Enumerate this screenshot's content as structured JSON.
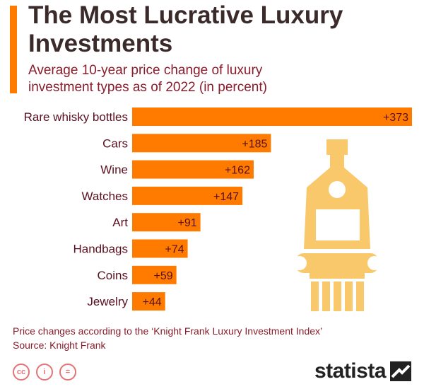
{
  "title": "The Most Lucrative Luxury Investments",
  "subtitle": "Average 10-year price change of luxury investment types as of 2022 (in percent)",
  "note": "Price changes according to the ‘Knight Frank Luxury Investment Index’",
  "source": "Source: Knight Frank",
  "brand": "statista",
  "icons": [
    "creative-commons-icon",
    "attribution-icon",
    "no-derivatives-icon"
  ],
  "icon_glyphs": [
    "cc",
    "i",
    "="
  ],
  "colors": {
    "bar": "#ff7b00",
    "accent": "#ff7b00",
    "text_dark": "#5a1020",
    "illustration": "#f8c86a"
  },
  "chart_data": {
    "type": "bar",
    "orientation": "horizontal",
    "categories": [
      "Rare whisky bottles",
      "Cars",
      "Wine",
      "Watches",
      "Art",
      "Handbags",
      "Coins",
      "Jewelry"
    ],
    "values": [
      373,
      185,
      162,
      147,
      91,
      74,
      59,
      44
    ],
    "value_labels": [
      "+373",
      "+185",
      "+162",
      "+147",
      "+91",
      "+74",
      "+59",
      "+44"
    ],
    "title": "The Most Lucrative Luxury Investments",
    "subtitle": "Average 10-year price change of luxury investment types as of 2022 (in percent)",
    "xlabel": "",
    "ylabel": "",
    "xlim": [
      0,
      373
    ],
    "grid": false,
    "legend": "none"
  }
}
